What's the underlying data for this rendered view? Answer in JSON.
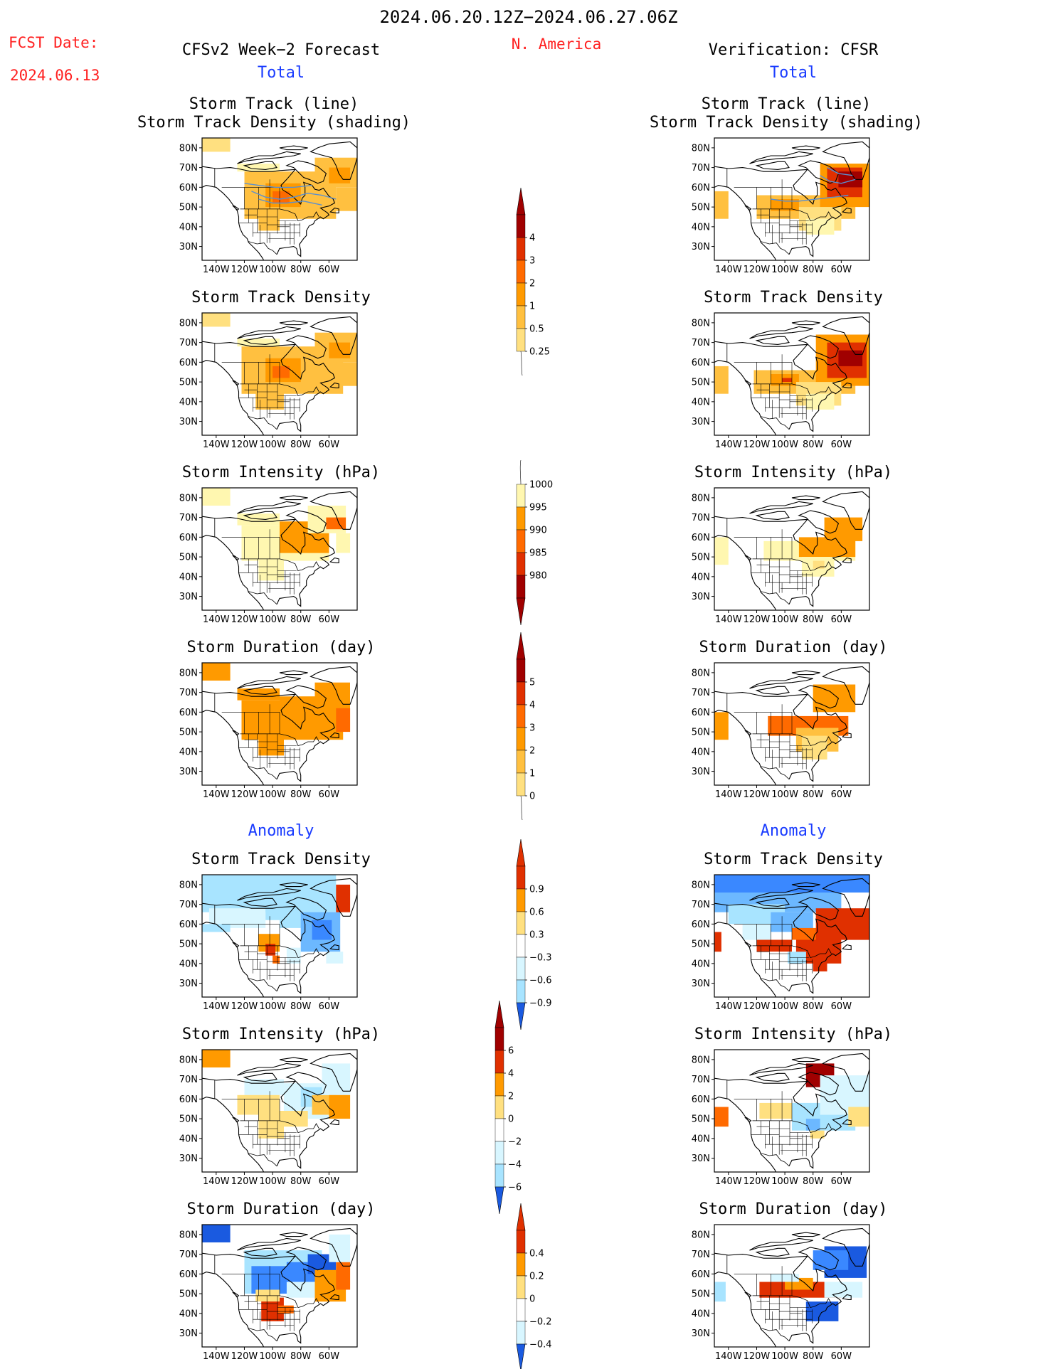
{
  "header": {
    "period": "2024.06.20.12Z−2024.06.27.06Z",
    "region": "N. America",
    "fcst_label": "FCST Date:",
    "fcst_date": "2024.06.13",
    "left_title": "CFSv2 Week−2 Forecast",
    "right_title": "Verification: CFSR"
  },
  "sections": {
    "total": "Total",
    "anomaly": "Anomaly"
  },
  "panels": {
    "track_line": [
      "Storm Track (line)",
      "Storm Track Density (shading)"
    ],
    "density": "Storm Track Density",
    "intensity": "Storm Intensity (hPa)",
    "duration": "Storm Duration (day)"
  },
  "axes": {
    "lat": [
      "80N",
      "70N",
      "60N",
      "50N",
      "40N",
      "30N"
    ],
    "lon": [
      "140W",
      "120W",
      "100W",
      "80W",
      "60W"
    ]
  },
  "colorbars": {
    "track_density_total": [
      "4",
      "3",
      "2",
      "1",
      "0.5",
      "0.25"
    ],
    "intensity_total": [
      "1000",
      "995",
      "990",
      "985",
      "980"
    ],
    "duration_total": [
      "5",
      "4",
      "3",
      "2",
      "1",
      "0"
    ],
    "track_density_anom": [
      "0.9",
      "0.6",
      "0.3",
      "−0.3",
      "−0.6",
      "−0.9"
    ],
    "intensity_anom": [
      "6",
      "4",
      "2",
      "0",
      "−2",
      "−4",
      "−6"
    ],
    "duration_anom": [
      "0.4",
      "0.2",
      "0",
      "−0.2",
      "−0.4"
    ]
  },
  "colors": {
    "title_red": "#ff2020",
    "title_blue": "#1a3cff",
    "pos_scale": [
      "#fff7b0",
      "#ffe080",
      "#ffc040",
      "#ff9a00",
      "#ff6a00",
      "#e03000",
      "#a00000"
    ],
    "neg_scale": [
      "#d8f6ff",
      "#a8e4ff",
      "#6cb8ff",
      "#3a88ff",
      "#1a5ae0"
    ],
    "track_line": "#5a8fd0"
  }
}
